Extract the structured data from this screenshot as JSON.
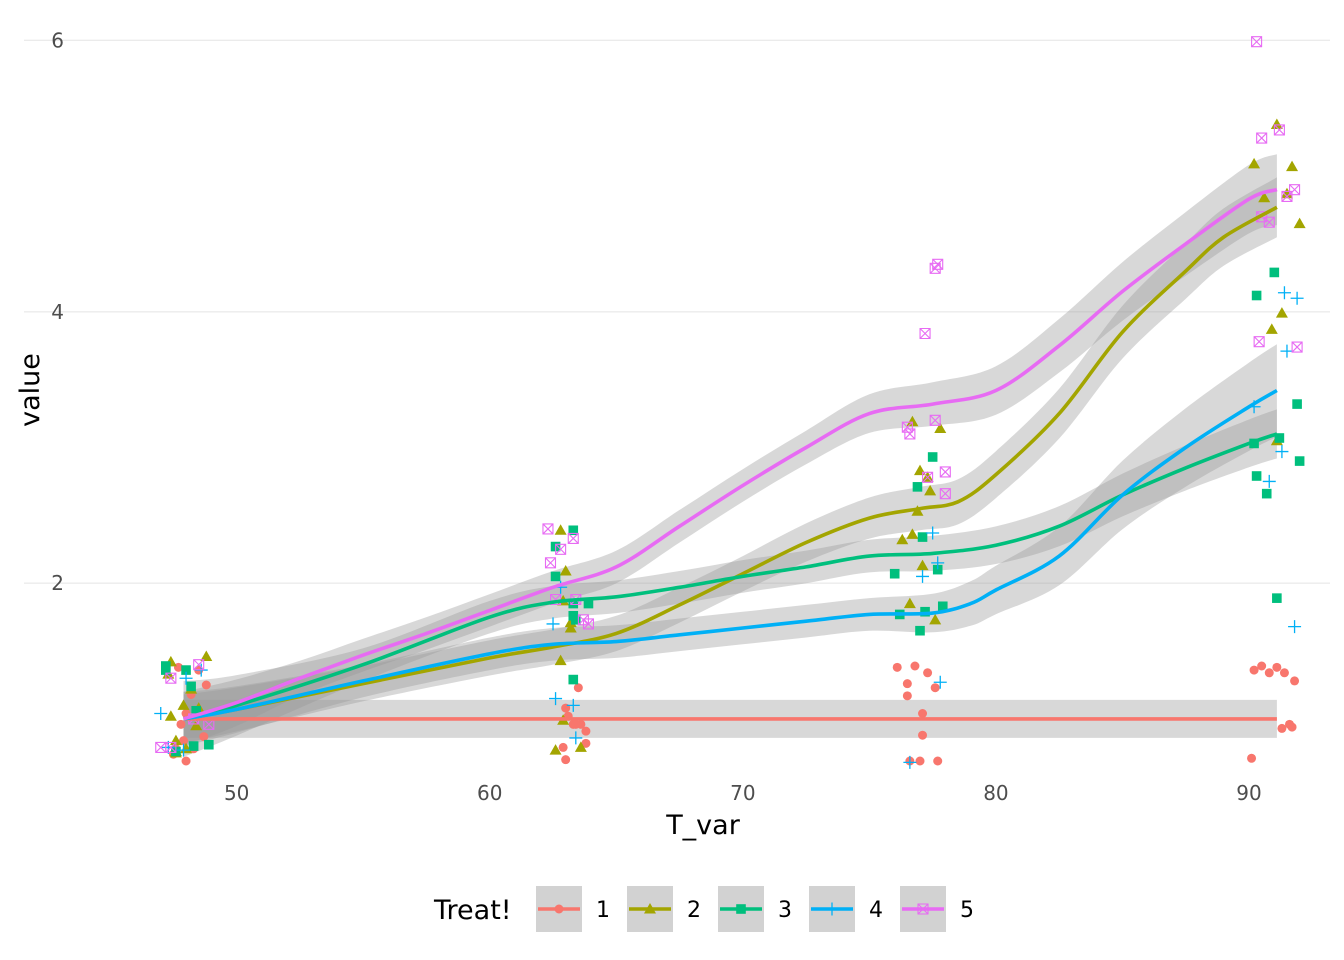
{
  "chart_data": {
    "type": "scatter",
    "title": "",
    "xlabel": "T_var",
    "ylabel": "value",
    "xlim": [
      44.6,
      93.2
    ],
    "ylim": [
      0.55,
      6.15
    ],
    "x_ticks": [
      50,
      60,
      70,
      80,
      90
    ],
    "y_ticks": [
      2,
      4,
      6
    ],
    "grid": true,
    "legend": {
      "title": "Treat!",
      "position": "bottom"
    },
    "series": [
      {
        "name": "1",
        "color": "#F8766D",
        "shape": "circle",
        "points": [
          [
            47.7,
            1.38
          ],
          [
            47.8,
            0.96
          ],
          [
            48.0,
            1.04
          ],
          [
            48.2,
            1.18
          ],
          [
            48.5,
            1.36
          ],
          [
            47.9,
            0.84
          ],
          [
            48.7,
            0.87
          ],
          [
            48.3,
            0.78
          ],
          [
            47.5,
            0.74
          ],
          [
            48.8,
            1.25
          ],
          [
            47.6,
            0.78
          ],
          [
            48.0,
            0.69
          ],
          [
            62.9,
            0.79
          ],
          [
            63.0,
            1.08
          ],
          [
            63.1,
            1.02
          ],
          [
            63.3,
            0.96
          ],
          [
            63.6,
            0.96
          ],
          [
            63.8,
            0.91
          ],
          [
            63.5,
            1.23
          ],
          [
            63.8,
            0.82
          ],
          [
            63.0,
            0.7
          ],
          [
            63.4,
            0.96
          ],
          [
            76.1,
            1.38
          ],
          [
            76.5,
            1.17
          ],
          [
            76.8,
            1.39
          ],
          [
            76.5,
            1.26
          ],
          [
            77.1,
            1.04
          ],
          [
            77.1,
            0.88
          ],
          [
            77.3,
            1.34
          ],
          [
            77.6,
            1.23
          ],
          [
            76.6,
            0.69
          ],
          [
            77.0,
            0.69
          ],
          [
            77.7,
            0.69
          ],
          [
            90.2,
            1.36
          ],
          [
            90.5,
            1.39
          ],
          [
            90.8,
            1.34
          ],
          [
            91.1,
            1.38
          ],
          [
            91.4,
            1.34
          ],
          [
            91.8,
            1.28
          ],
          [
            91.6,
            0.96
          ],
          [
            91.7,
            0.94
          ],
          [
            91.3,
            0.93
          ],
          [
            90.1,
            0.71
          ]
        ],
        "fit": [
          [
            47.9,
            1.0
          ],
          [
            55,
            1.0
          ],
          [
            62,
            1.0
          ],
          [
            70,
            1.0
          ],
          [
            77,
            1.0
          ],
          [
            84,
            1.0
          ],
          [
            91.1,
            1.0
          ]
        ]
      },
      {
        "name": "2",
        "color": "#A3A500",
        "shape": "triangle",
        "points": [
          [
            47.4,
            1.42
          ],
          [
            47.3,
            1.33
          ],
          [
            47.6,
            0.84
          ],
          [
            47.9,
            1.1
          ],
          [
            48.2,
            1.22
          ],
          [
            48.5,
            1.08
          ],
          [
            48.8,
            1.46
          ],
          [
            48.4,
            0.95
          ],
          [
            48.0,
            0.78
          ],
          [
            47.6,
            0.76
          ],
          [
            47.4,
            1.02
          ],
          [
            47.6,
            0.75
          ],
          [
            62.8,
            2.39
          ],
          [
            63.0,
            2.09
          ],
          [
            62.9,
            1.87
          ],
          [
            63.2,
            1.67
          ],
          [
            63.2,
            1.71
          ],
          [
            62.8,
            1.43
          ],
          [
            62.9,
            0.99
          ],
          [
            62.6,
            0.77
          ],
          [
            63.6,
            0.79
          ],
          [
            76.3,
            2.32
          ],
          [
            76.6,
            1.85
          ],
          [
            76.7,
            3.19
          ],
          [
            77.0,
            2.83
          ],
          [
            77.3,
            2.78
          ],
          [
            77.1,
            2.13
          ],
          [
            77.4,
            2.68
          ],
          [
            77.6,
            1.73
          ],
          [
            77.8,
            3.14
          ],
          [
            76.7,
            2.36
          ],
          [
            76.9,
            2.53
          ],
          [
            90.2,
            5.09
          ],
          [
            90.6,
            4.84
          ],
          [
            91.1,
            5.38
          ],
          [
            91.5,
            4.87
          ],
          [
            91.7,
            5.07
          ],
          [
            92.0,
            4.65
          ],
          [
            91.3,
            3.99
          ],
          [
            90.9,
            3.87
          ],
          [
            91.1,
            3.05
          ]
        ],
        "fit": [
          [
            47.9,
            1.0
          ],
          [
            50,
            1.07
          ],
          [
            55,
            1.26
          ],
          [
            60,
            1.45
          ],
          [
            62.5,
            1.53
          ],
          [
            65,
            1.63
          ],
          [
            67.5,
            1.84
          ],
          [
            70,
            2.07
          ],
          [
            72.5,
            2.3
          ],
          [
            75,
            2.48
          ],
          [
            77,
            2.55
          ],
          [
            78.5,
            2.6
          ],
          [
            80,
            2.8
          ],
          [
            82.5,
            3.25
          ],
          [
            85,
            3.85
          ],
          [
            87.5,
            4.3
          ],
          [
            89,
            4.55
          ],
          [
            91.1,
            4.77
          ]
        ]
      },
      {
        "name": "3",
        "color": "#00BF7D",
        "shape": "square",
        "points": [
          [
            47.2,
            1.39
          ],
          [
            47.2,
            1.36
          ],
          [
            47.6,
            0.76
          ],
          [
            48.2,
            1.24
          ],
          [
            48.4,
            1.06
          ],
          [
            48.3,
            0.8
          ],
          [
            48.9,
            0.81
          ],
          [
            48.0,
            1.36
          ],
          [
            62.6,
            2.27
          ],
          [
            63.3,
            2.39
          ],
          [
            62.6,
            2.05
          ],
          [
            63.3,
            1.29
          ],
          [
            63.4,
            1.73
          ],
          [
            63.3,
            1.85
          ],
          [
            63.9,
            1.85
          ],
          [
            63.3,
            1.76
          ],
          [
            76.0,
            2.07
          ],
          [
            76.2,
            1.77
          ],
          [
            76.9,
            2.71
          ],
          [
            77.0,
            1.65
          ],
          [
            77.5,
            2.93
          ],
          [
            77.2,
            1.79
          ],
          [
            77.1,
            2.34
          ],
          [
            77.7,
            2.1
          ],
          [
            77.9,
            1.83
          ],
          [
            90.3,
            4.12
          ],
          [
            90.7,
            2.66
          ],
          [
            91.0,
            4.29
          ],
          [
            91.2,
            3.07
          ],
          [
            90.2,
            3.03
          ],
          [
            90.3,
            2.79
          ],
          [
            91.9,
            3.32
          ],
          [
            92.0,
            2.9
          ],
          [
            91.1,
            1.89
          ]
        ],
        "fit": [
          [
            47.9,
            1.0
          ],
          [
            50,
            1.1
          ],
          [
            55,
            1.4
          ],
          [
            60,
            1.75
          ],
          [
            62.5,
            1.86
          ],
          [
            65,
            1.9
          ],
          [
            67.5,
            1.97
          ],
          [
            70,
            2.05
          ],
          [
            72.5,
            2.12
          ],
          [
            75,
            2.2
          ],
          [
            77.5,
            2.22
          ],
          [
            80,
            2.28
          ],
          [
            82.5,
            2.42
          ],
          [
            85,
            2.65
          ],
          [
            87.5,
            2.85
          ],
          [
            90,
            3.03
          ],
          [
            91.1,
            3.1
          ]
        ]
      },
      {
        "name": "4",
        "color": "#00B0F6",
        "shape": "plus",
        "points": [
          [
            47.0,
            1.04
          ],
          [
            47.3,
            0.79
          ],
          [
            47.9,
            0.77
          ],
          [
            48.6,
            1.36
          ],
          [
            48.0,
            1.3
          ],
          [
            62.5,
            1.7
          ],
          [
            62.8,
            1.97
          ],
          [
            62.6,
            1.15
          ],
          [
            63.3,
            1.1
          ],
          [
            63.4,
            0.86
          ],
          [
            76.6,
            0.68
          ],
          [
            77.1,
            2.05
          ],
          [
            77.5,
            2.37
          ],
          [
            77.7,
            2.15
          ],
          [
            77.8,
            1.27
          ],
          [
            90.2,
            3.3
          ],
          [
            90.8,
            2.75
          ],
          [
            91.3,
            2.97
          ],
          [
            91.4,
            4.14
          ],
          [
            91.5,
            3.71
          ],
          [
            91.9,
            4.1
          ],
          [
            91.8,
            1.68
          ]
        ],
        "fit": [
          [
            47.9,
            1.0
          ],
          [
            50,
            1.07
          ],
          [
            55,
            1.28
          ],
          [
            60,
            1.48
          ],
          [
            62.5,
            1.55
          ],
          [
            65,
            1.57
          ],
          [
            67.5,
            1.62
          ],
          [
            70,
            1.67
          ],
          [
            72.5,
            1.72
          ],
          [
            75,
            1.77
          ],
          [
            77.5,
            1.78
          ],
          [
            79,
            1.85
          ],
          [
            80,
            1.95
          ],
          [
            82.5,
            2.2
          ],
          [
            85,
            2.65
          ],
          [
            87.5,
            3.0
          ],
          [
            90,
            3.3
          ],
          [
            91.1,
            3.42
          ]
        ]
      },
      {
        "name": "5",
        "color": "#E76BF3",
        "shape": "square-x",
        "points": [
          [
            47.0,
            0.79
          ],
          [
            47.4,
            0.79
          ],
          [
            47.4,
            1.3
          ],
          [
            48.5,
            1.4
          ],
          [
            48.9,
            0.96
          ],
          [
            48.3,
            1.0
          ],
          [
            62.3,
            2.4
          ],
          [
            62.4,
            2.15
          ],
          [
            62.8,
            2.25
          ],
          [
            63.3,
            2.33
          ],
          [
            62.6,
            1.88
          ],
          [
            63.4,
            1.88
          ],
          [
            63.7,
            1.73
          ],
          [
            63.9,
            1.7
          ],
          [
            76.5,
            3.15
          ],
          [
            76.6,
            3.1
          ],
          [
            77.2,
            3.84
          ],
          [
            77.6,
            4.32
          ],
          [
            77.7,
            4.35
          ],
          [
            77.6,
            3.2
          ],
          [
            77.3,
            2.78
          ],
          [
            78.0,
            2.82
          ],
          [
            78.0,
            2.66
          ],
          [
            90.4,
            3.78
          ],
          [
            90.5,
            5.28
          ],
          [
            90.5,
            4.7
          ],
          [
            90.8,
            4.66
          ],
          [
            90.3,
            5.99
          ],
          [
            91.2,
            5.34
          ],
          [
            91.5,
            4.85
          ],
          [
            91.8,
            4.9
          ],
          [
            91.9,
            3.74
          ]
        ],
        "fit": [
          [
            47.9,
            1.0
          ],
          [
            50,
            1.12
          ],
          [
            52.5,
            1.3
          ],
          [
            55,
            1.47
          ],
          [
            57.5,
            1.63
          ],
          [
            60,
            1.8
          ],
          [
            62.5,
            1.97
          ],
          [
            65,
            2.12
          ],
          [
            67.5,
            2.42
          ],
          [
            70,
            2.72
          ],
          [
            72.5,
            3.0
          ],
          [
            75,
            3.25
          ],
          [
            77.5,
            3.32
          ],
          [
            80,
            3.42
          ],
          [
            82.5,
            3.75
          ],
          [
            85,
            4.15
          ],
          [
            87.5,
            4.5
          ],
          [
            90,
            4.83
          ],
          [
            91.1,
            4.9
          ]
        ]
      }
    ]
  }
}
